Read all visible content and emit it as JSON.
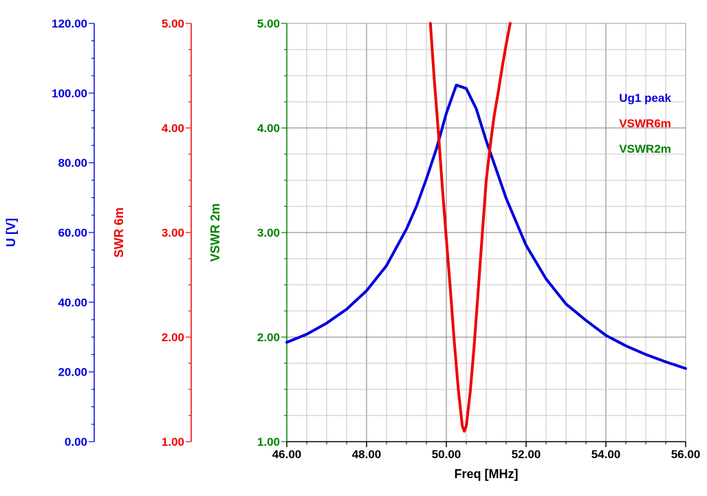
{
  "chart_data": {
    "type": "line",
    "xlabel": "Freq [MHz]",
    "x_range": [
      46,
      56
    ],
    "x_ticks": [
      "46.00",
      "48.00",
      "50.00",
      "52.00",
      "54.00",
      "56.00"
    ],
    "axes": [
      {
        "id": "u",
        "label": "U [V]",
        "color": "#0000dd",
        "range": [
          0,
          120
        ],
        "ticks": [
          "0.00",
          "20.00",
          "40.00",
          "60.00",
          "80.00",
          "100.00",
          "120.00"
        ]
      },
      {
        "id": "swr6",
        "label": "SWR 6m",
        "color": "#ee0000",
        "range": [
          1,
          5
        ],
        "ticks": [
          "1.00",
          "2.00",
          "3.00",
          "4.00",
          "5.00"
        ]
      },
      {
        "id": "vswr2",
        "label": "VSWR 2m",
        "color": "#008000",
        "range": [
          1,
          5
        ],
        "ticks": [
          "1.00",
          "2.00",
          "3.00",
          "4.00",
          "5.00"
        ]
      }
    ],
    "grid": true,
    "legend_position": "top-right",
    "series": [
      {
        "name": "Ug1 peak",
        "color": "#0000dd",
        "axis": "u",
        "x": [
          46.0,
          46.5,
          47.0,
          47.5,
          48.0,
          48.5,
          49.0,
          49.25,
          49.5,
          49.75,
          50.0,
          50.25,
          50.5,
          50.75,
          51.0,
          51.25,
          51.5,
          52.0,
          52.5,
          53.0,
          53.5,
          54.0,
          54.5,
          55.0,
          55.5,
          56.0
        ],
        "y": [
          28.5,
          30.8,
          34.0,
          38.0,
          43.3,
          50.5,
          61.0,
          67.5,
          75.4,
          84.0,
          94.2,
          102.3,
          101.3,
          95.5,
          86.3,
          78.1,
          69.8,
          56.3,
          46.7,
          39.5,
          34.8,
          30.5,
          27.5,
          25.0,
          22.9,
          21.0
        ]
      },
      {
        "name": "VSWR6m",
        "color": "#ee0000",
        "axis": "swr6",
        "x": [
          49.6,
          49.7,
          49.8,
          49.9,
          50.0,
          50.1,
          50.2,
          50.3,
          50.4,
          50.45,
          50.5,
          50.6,
          50.7,
          50.8,
          50.9,
          51.0,
          51.1,
          51.2,
          51.3,
          51.4,
          51.5,
          51.6
        ],
        "y": [
          5.0,
          4.45,
          3.96,
          3.43,
          2.94,
          2.46,
          1.95,
          1.5,
          1.15,
          1.1,
          1.15,
          1.48,
          1.93,
          2.45,
          2.98,
          3.5,
          3.83,
          4.12,
          4.34,
          4.58,
          4.8,
          5.0
        ]
      },
      {
        "name": "VSWR2m",
        "color": "#008000",
        "axis": "vswr2",
        "x": [],
        "y": []
      }
    ]
  }
}
